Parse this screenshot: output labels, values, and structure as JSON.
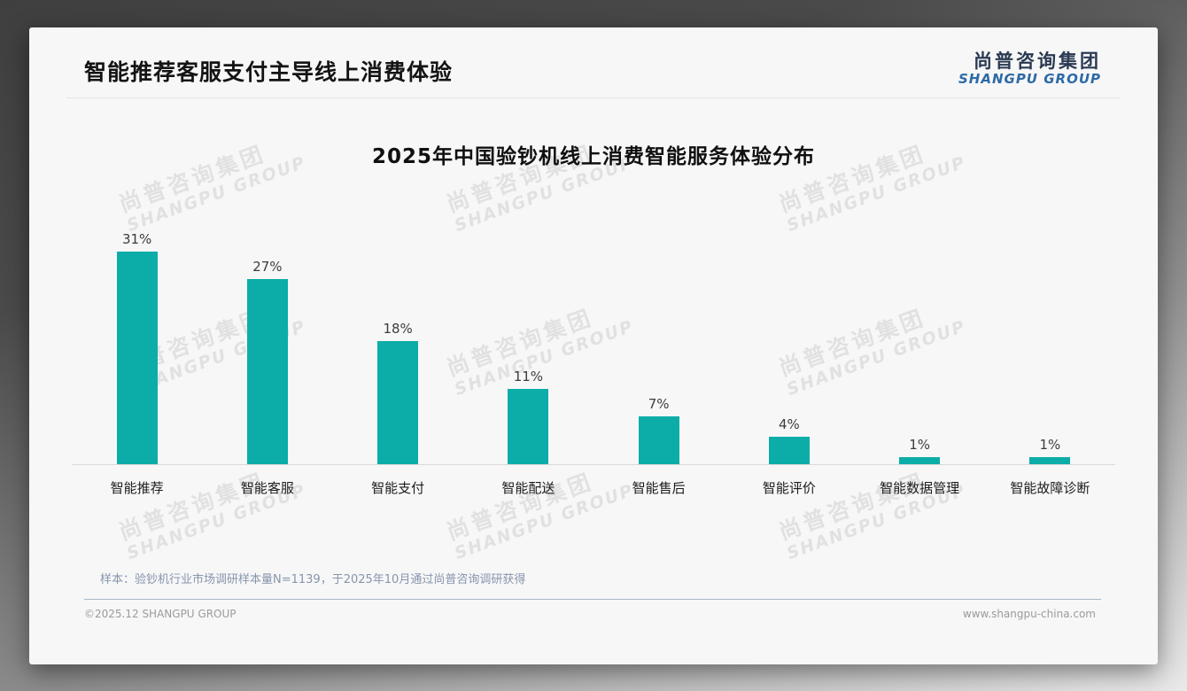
{
  "header": {
    "title": "智能推荐客服支付主导线上消费体验"
  },
  "logo": {
    "chinese": "尚普咨询集团",
    "english": "SHANGPU GROUP"
  },
  "watermark": {
    "line1": "尚普咨询集团",
    "line2": "SHANGPU GROUP"
  },
  "chart_data": {
    "type": "bar",
    "title": "2025年中国验钞机线上消费智能服务体验分布",
    "categories": [
      "智能推荐",
      "智能客服",
      "智能支付",
      "智能配送",
      "智能售后",
      "智能评价",
      "智能数据管理",
      "智能故障诊断"
    ],
    "values": [
      31,
      27,
      18,
      11,
      7,
      4,
      1,
      1
    ],
    "value_labels": [
      "31%",
      "27%",
      "18%",
      "11%",
      "7%",
      "4%",
      "1%",
      "1%"
    ],
    "xlabel": "",
    "ylabel": "",
    "ylim": [
      0,
      33
    ],
    "grid": false,
    "legend": false,
    "bar_color": "#0CADA8",
    "axis_line_color": "#d9d9da"
  },
  "source_note": "样本：验钞机行业市场调研样本量N=1139，于2025年10月通过尚普咨询调研获得",
  "footer": {
    "copyright": "©2025.12 SHANGPU GROUP",
    "website": "www.shangpu-china.com"
  },
  "colors": {
    "bar": "#0CADA8",
    "logo_navy": "#2A3A52",
    "logo_blue": "#2D6AA6",
    "note_blue_gray": "#8795AB",
    "card_background": "#F7F7F8"
  }
}
